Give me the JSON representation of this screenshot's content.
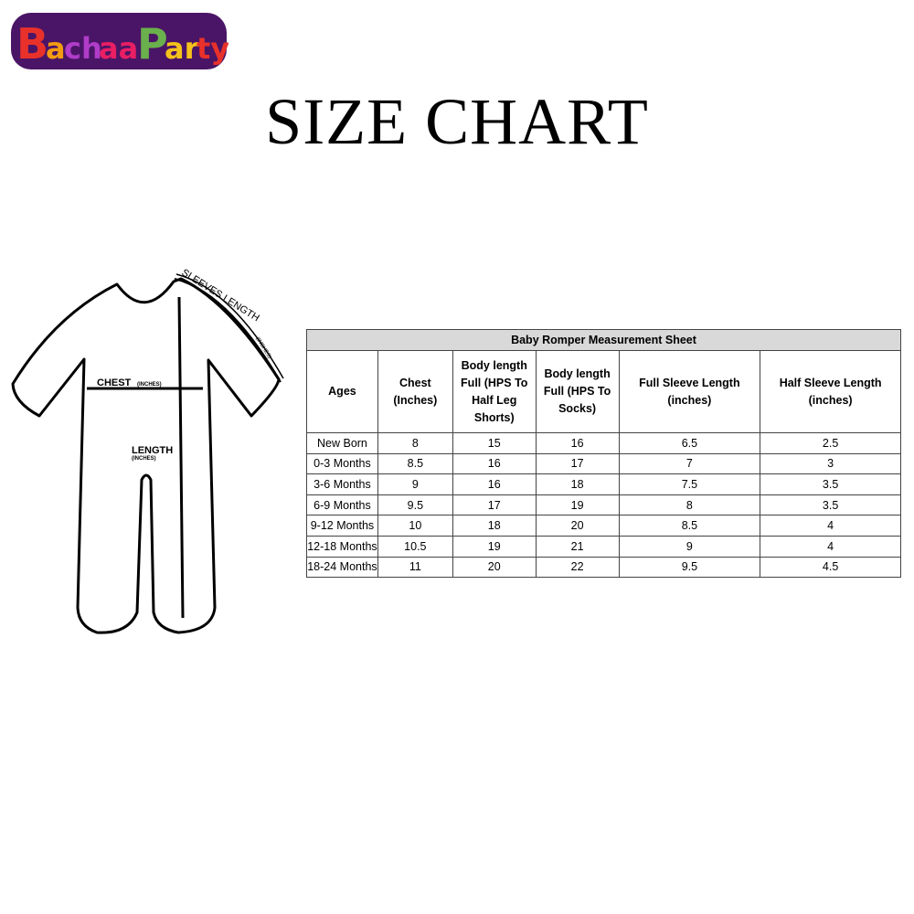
{
  "logo": {
    "text": "BachaaParty",
    "colors": [
      "#e8312a",
      "#b03cc8",
      "#f4c21b",
      "#6ab04c",
      "#f39c12",
      "#e91e63",
      "#4a1566"
    ]
  },
  "title": "SIZE CHART",
  "diagram": {
    "sleeve_label": "SLEEVES LENGTH",
    "sleeve_unit": "(INCHES)",
    "chest_label": "CHEST",
    "chest_unit": "(INCHES)",
    "length_label": "LENGTH",
    "length_unit": "(INCHES)"
  },
  "table": {
    "caption": "Baby Romper Measurement Sheet",
    "headers": [
      "Ages",
      "Chest (Inches)",
      "Body length Full (HPS To Half Leg Shorts)",
      "Body length Full (HPS To Socks)",
      "Full Sleeve Length (inches)",
      "Half Sleeve Length (inches)"
    ],
    "rows": [
      [
        "New Born",
        "8",
        "15",
        "16",
        "6.5",
        "2.5"
      ],
      [
        "0-3 Months",
        "8.5",
        "16",
        "17",
        "7",
        "3"
      ],
      [
        "3-6 Months",
        "9",
        "16",
        "18",
        "7.5",
        "3.5"
      ],
      [
        "6-9 Months",
        "9.5",
        "17",
        "19",
        "8",
        "3.5"
      ],
      [
        "9-12 Months",
        "10",
        "18",
        "20",
        "8.5",
        "4"
      ],
      [
        "12-18 Months",
        "10.5",
        "19",
        "21",
        "9",
        "4"
      ],
      [
        "18-24 Months",
        "11",
        "20",
        "22",
        "9.5",
        "4.5"
      ]
    ]
  }
}
